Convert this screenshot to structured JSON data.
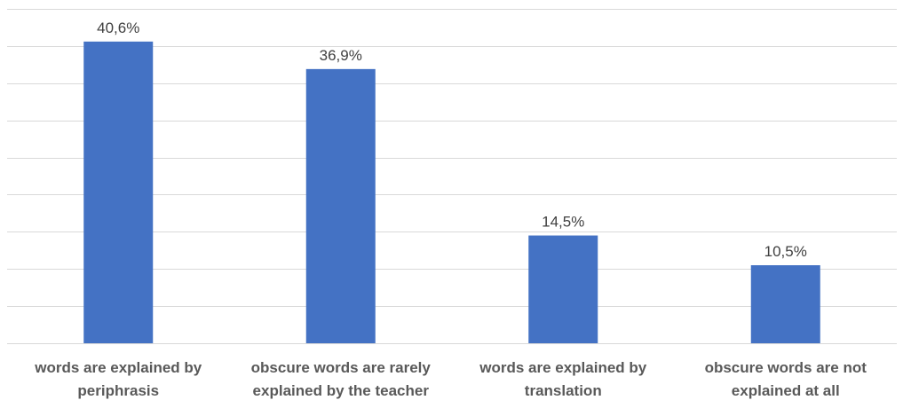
{
  "chart_data": {
    "type": "bar",
    "categories": [
      [
        "words are explained by",
        "periphrasis"
      ],
      [
        "obscure words are rarely",
        "explained by the teacher"
      ],
      [
        "words are explained by",
        "translation"
      ],
      [
        "obscure words are not",
        "explained at all"
      ]
    ],
    "values": [
      40.6,
      36.9,
      14.5,
      10.5
    ],
    "data_labels": [
      "40,6%",
      "36,9%",
      "14,5%",
      "10,5%"
    ],
    "ylim": [
      0,
      45
    ],
    "grid_step": 5,
    "grid": true,
    "legend": false,
    "colors": {
      "bar": "#4472c4",
      "grid": "#d9d9d9"
    }
  }
}
